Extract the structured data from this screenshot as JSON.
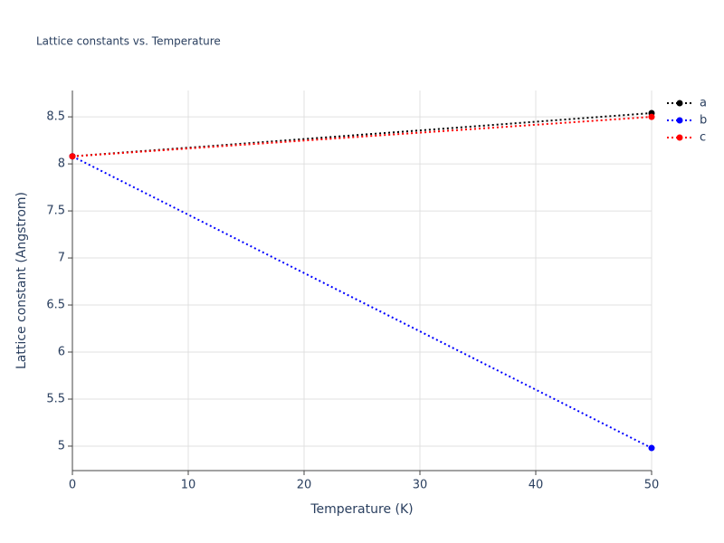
{
  "chart_data": {
    "type": "line",
    "title": "Lattice constants vs. Temperature",
    "x_label": "Temperature (K)",
    "y_label": "Lattice constant (Angstrom)",
    "x": [
      0,
      50
    ],
    "series": [
      {
        "name": "a",
        "color": "#000000",
        "values": [
          8.08,
          8.54
        ]
      },
      {
        "name": "b",
        "color": "#0000ff",
        "values": [
          8.08,
          4.98
        ]
      },
      {
        "name": "c",
        "color": "#ff0000",
        "values": [
          8.08,
          8.5
        ]
      }
    ],
    "xlim": [
      0,
      50
    ],
    "xticks": [
      0,
      10,
      20,
      30,
      40,
      50
    ],
    "ylim": [
      4.74,
      8.78
    ],
    "yticks": [
      5,
      5.5,
      6,
      6.5,
      7,
      7.5,
      8,
      8.5
    ],
    "grid": true,
    "legend": "right"
  }
}
